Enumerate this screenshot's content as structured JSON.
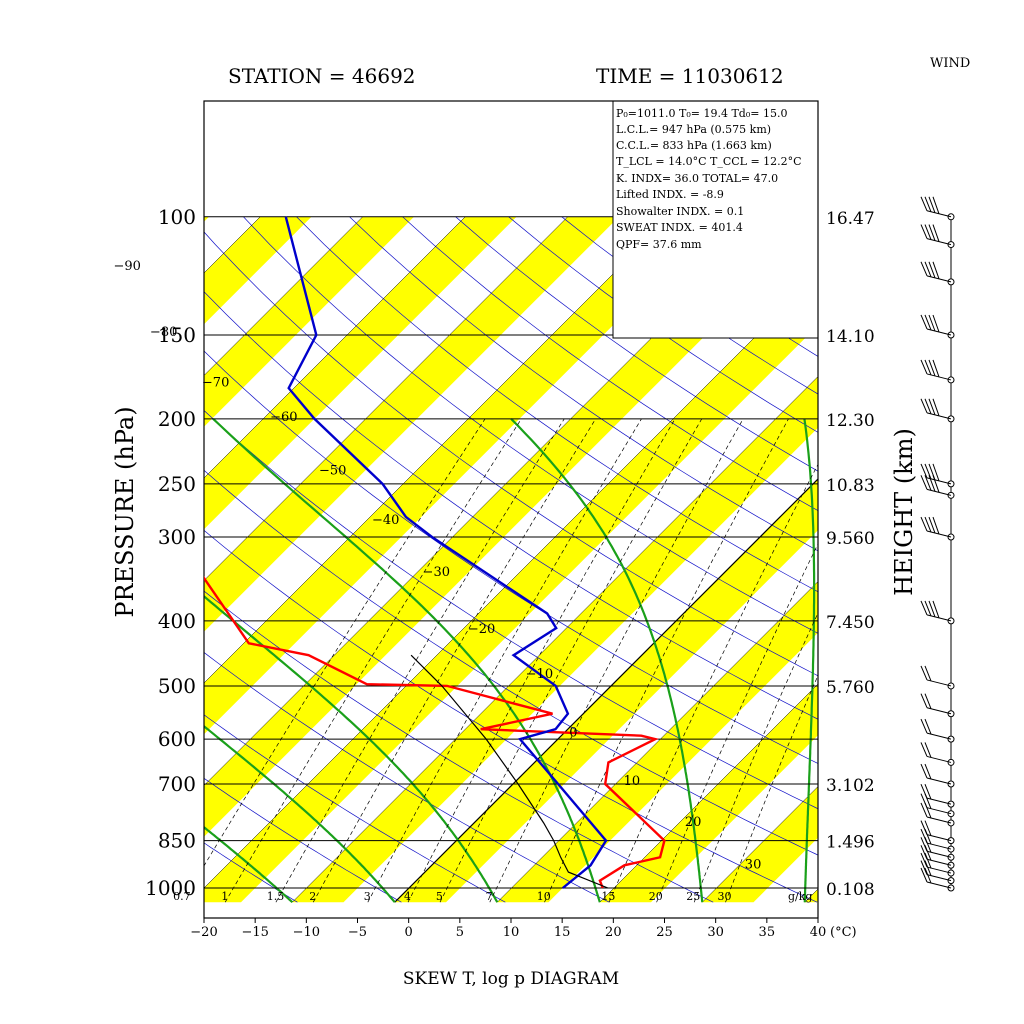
{
  "header": {
    "station": "STATION = 46692",
    "time": "TIME = 11030612",
    "wind_label": "WIND"
  },
  "footer_title": "SKEW T, log p DIAGRAM",
  "chart_data": {
    "type": "line",
    "title": "SKEW T, log p DIAGRAM",
    "xlabel": "(°C)",
    "ylabel": "PRESSURE (hPa)",
    "y2label": "HEIGHT (km)",
    "xlim": [
      -20,
      40
    ],
    "ylim": [
      1050,
      100
    ],
    "x_ticks": [
      "−20",
      "−15",
      "−10",
      "−5",
      "0",
      "5",
      "10",
      "15",
      "20",
      "25",
      "30",
      "35",
      "40"
    ],
    "pressure_levels": [
      100,
      150,
      200,
      250,
      300,
      400,
      500,
      600,
      700,
      850,
      1000
    ],
    "height_labels": [
      "16.47",
      "14.10",
      "12.30",
      "10.83",
      "9.560",
      "7.450",
      "5.760",
      "3.102",
      "1.496",
      "0.108"
    ],
    "height_label_levels": [
      100,
      150,
      200,
      250,
      300,
      400,
      500,
      700,
      850,
      1000
    ],
    "isotherm_labels": [
      {
        "text": "−90",
        "t": -90
      },
      {
        "text": "−80",
        "t": -80
      },
      {
        "text": "−70",
        "t": -70
      },
      {
        "text": "−60",
        "t": -60
      },
      {
        "text": "−50",
        "t": -50
      },
      {
        "text": "−40",
        "t": -40
      },
      {
        "text": "−30",
        "t": -30
      },
      {
        "text": "−20",
        "t": -20
      },
      {
        "text": "−10",
        "t": -10
      },
      {
        "text": "0",
        "t": 0
      },
      {
        "text": "10",
        "t": 10
      },
      {
        "text": "20",
        "t": 20
      },
      {
        "text": "30",
        "t": 30
      }
    ],
    "mixing_ratio_labels": [
      "0.7",
      "1",
      "1.5",
      "2",
      "3",
      "4",
      "5",
      "7",
      "10",
      "15",
      "20",
      "25",
      "30"
    ],
    "mixing_ratio_values": [
      0.7,
      1,
      1.5,
      2,
      3,
      4,
      5,
      7,
      10,
      15,
      20,
      25,
      30
    ],
    "mixing_ratio_unit": "g/kg",
    "series": [
      {
        "name": "",
        "color": "#ff0000",
        "points": [
          {
            "p": 1000,
            "t": 18.9
          },
          {
            "p": 975,
            "t": 17.9
          },
          {
            "p": 925,
            "t": 18.8
          },
          {
            "p": 900,
            "t": 21.5
          },
          {
            "p": 850,
            "t": 20.3
          },
          {
            "p": 700,
            "t": 9.0
          },
          {
            "p": 650,
            "t": 7.2
          },
          {
            "p": 600,
            "t": 9.5
          },
          {
            "p": 593,
            "t": 7.8
          },
          {
            "p": 580,
            "t": -8.5
          },
          {
            "p": 550,
            "t": -3.0
          },
          {
            "p": 500,
            "t": -16.0
          },
          {
            "p": 497,
            "t": -24.0
          },
          {
            "p": 450,
            "t": -32.5
          },
          {
            "p": 432,
            "t": -39.5
          },
          {
            "p": 300,
            "t": -57.0
          },
          {
            "p": 285,
            "t": -56.5
          }
        ]
      },
      {
        "name": "",
        "color": "#0000cc",
        "points": [
          {
            "p": 1000,
            "t": 15.0
          },
          {
            "p": 925,
            "t": 15.5
          },
          {
            "p": 850,
            "t": 14.6
          },
          {
            "p": 700,
            "t": 4.4
          },
          {
            "p": 600,
            "t": -3.7
          },
          {
            "p": 580,
            "t": -1.2
          },
          {
            "p": 550,
            "t": -1.5
          },
          {
            "p": 500,
            "t": -5.4
          },
          {
            "p": 450,
            "t": -12.5
          },
          {
            "p": 410,
            "t": -11.0
          },
          {
            "p": 390,
            "t": -13.3
          },
          {
            "p": 300,
            "t": -32.0
          },
          {
            "p": 280,
            "t": -36.5
          },
          {
            "p": 250,
            "t": -42.0
          },
          {
            "p": 200,
            "t": -55.0
          },
          {
            "p": 180,
            "t": -60.5
          },
          {
            "p": 150,
            "t": -63.0
          },
          {
            "p": 100,
            "t": -77.5
          }
        ]
      },
      {
        "name": "",
        "color": "#000000",
        "points": [
          {
            "p": 1000,
            "t": 19.4
          },
          {
            "p": 947,
            "t": 14.0
          },
          {
            "p": 900,
            "t": 11.8
          },
          {
            "p": 850,
            "t": 9.5
          },
          {
            "p": 800,
            "t": 6.8
          },
          {
            "p": 700,
            "t": 0.5
          },
          {
            "p": 600,
            "t": -7.0
          },
          {
            "p": 500,
            "t": -16.5
          },
          {
            "p": 450,
            "t": -22.5
          }
        ]
      }
    ],
    "wind_barbs": [
      {
        "p": 1000
      },
      {
        "p": 975
      },
      {
        "p": 950
      },
      {
        "p": 925
      },
      {
        "p": 900
      },
      {
        "p": 875
      },
      {
        "p": 850
      },
      {
        "p": 800
      },
      {
        "p": 775
      },
      {
        "p": 750
      },
      {
        "p": 700
      },
      {
        "p": 650
      },
      {
        "p": 600
      },
      {
        "p": 550
      },
      {
        "p": 500
      },
      {
        "p": 400
      },
      {
        "p": 300
      },
      {
        "p": 260
      },
      {
        "p": 250
      },
      {
        "p": 200
      },
      {
        "p": 175
      },
      {
        "p": 150
      },
      {
        "p": 125
      },
      {
        "p": 110
      },
      {
        "p": 100
      }
    ]
  },
  "stats_box": {
    "line1": "P₀=1011.0 T₀= 19.4 Td₀= 15.0",
    "line2": "L.C.L.= 947 hPa (0.575 km)",
    "line3": "C.C.L.= 833 hPa (1.663 km)",
    "line4": "T_LCL = 14.0°C T_CCL = 12.2°C",
    "line5": "K. INDX= 36.0  TOTAL= 47.0",
    "line6": "Lifted INDX. =  -8.9",
    "line7": "Showalter INDX. =    0.1",
    "line8": "SWEAT INDX. =  401.4",
    "line9": "QPF= 37.6 mm"
  },
  "colors": {
    "band": "#ffff00",
    "isotherm": "#000000",
    "dry_adiabat": "#1010c8",
    "moist_adiabat": "#1aa01a",
    "mixing_ratio": "#000000"
  }
}
